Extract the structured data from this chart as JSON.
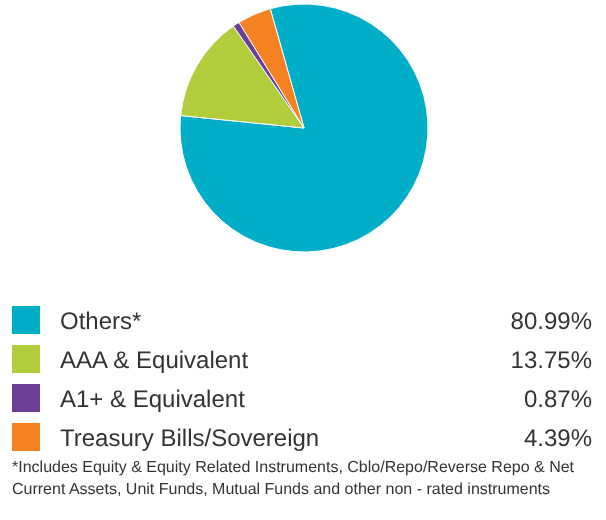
{
  "chart_data": {
    "type": "pie",
    "categories": [
      "Others*",
      "AAA & Equivalent",
      "A1+ & Equivalent",
      "Treasury Bills/Sovereign"
    ],
    "values": [
      80.99,
      13.75,
      0.87,
      4.39
    ],
    "value_labels": [
      "80.99%",
      "13.75%",
      "0.87%",
      "4.39%"
    ],
    "colors": [
      "#00aec7",
      "#b2cd3b",
      "#6b3e98",
      "#f58220"
    ],
    "legend": "bottom",
    "annotations": [
      "*Includes Equity & Equity Related Instruments, Cblo/Repo/Reverse Repo & Net Current Assets, Unit Funds, Mutual Funds and other non - rated instruments"
    ]
  }
}
